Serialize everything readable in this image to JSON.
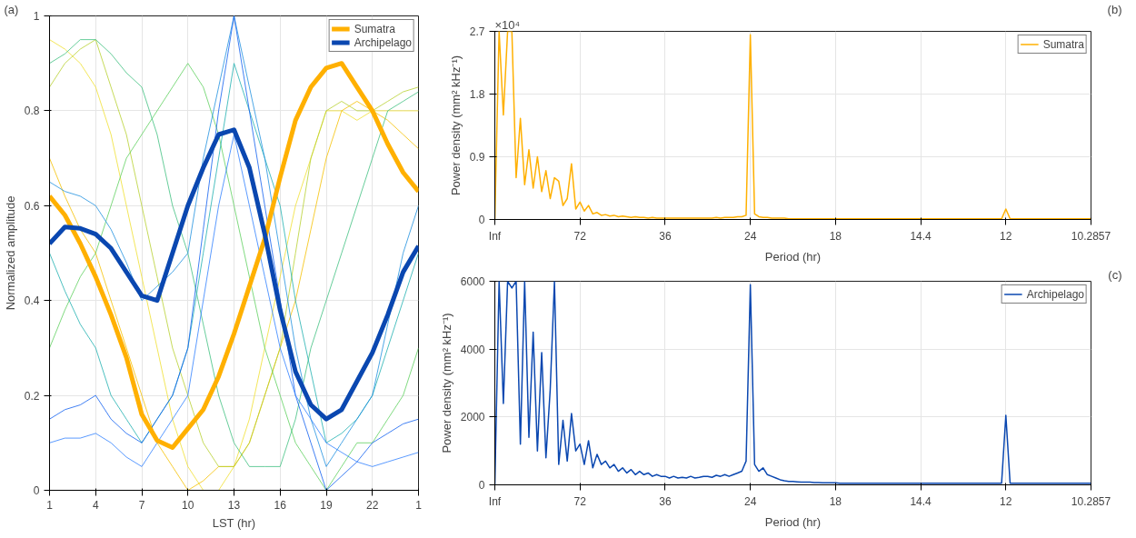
{
  "chart_data": [
    {
      "type": "line",
      "xlabel": "LST (hr)",
      "ylabel": "Normalized amplitude",
      "ylim": [
        0,
        1
      ],
      "categories": [
        "1",
        null,
        null,
        "4",
        null,
        null,
        "7",
        null,
        null,
        "10",
        null,
        null,
        "13",
        null,
        null,
        "16",
        null,
        null,
        "19",
        null,
        null,
        "22",
        null,
        null,
        "1"
      ],
      "yticks": [
        0,
        0.2,
        0.4,
        0.6,
        0.8,
        1
      ],
      "grid": true,
      "legend": "top right",
      "annotations": [
        "(a)"
      ],
      "series": [
        {
          "color": "#f0e030",
          "values": [
            0.95,
            0.93,
            0.9,
            0.85,
            0.75,
            0.6,
            0.45,
            0.3,
            0.15,
            0.05,
            0.0,
            0.0,
            0.05,
            0.15,
            0.3,
            0.45,
            0.6,
            0.7,
            0.8,
            0.8,
            0.78,
            0.8,
            0.8,
            0.8,
            0.8
          ]
        },
        {
          "color": "#f5c000",
          "values": [
            0.7,
            0.62,
            0.55,
            0.5,
            0.4,
            0.3,
            0.2,
            0.1,
            0.05,
            0.0,
            0.02,
            0.05,
            0.05,
            0.1,
            0.2,
            0.3,
            0.4,
            0.55,
            0.7,
            0.8,
            0.82,
            0.8,
            0.78,
            0.75,
            0.72
          ]
        },
        {
          "color": "#b8d030",
          "values": [
            0.85,
            0.9,
            0.93,
            0.95,
            0.85,
            0.75,
            0.6,
            0.45,
            0.3,
            0.2,
            0.1,
            0.05,
            0.05,
            0.1,
            0.2,
            0.3,
            0.5,
            0.7,
            0.8,
            0.82,
            0.8,
            0.8,
            0.82,
            0.84,
            0.85
          ]
        },
        {
          "color": "#60d060",
          "values": [
            0.3,
            0.38,
            0.45,
            0.5,
            0.6,
            0.7,
            0.75,
            0.8,
            0.85,
            0.9,
            0.85,
            0.75,
            0.6,
            0.45,
            0.3,
            0.2,
            0.1,
            0.05,
            0.0,
            0.05,
            0.1,
            0.1,
            0.15,
            0.2,
            0.3
          ]
        },
        {
          "color": "#40c080",
          "values": [
            0.9,
            0.92,
            0.95,
            0.95,
            0.92,
            0.88,
            0.85,
            0.75,
            0.6,
            0.5,
            0.35,
            0.2,
            0.1,
            0.05,
            0.05,
            0.05,
            0.15,
            0.3,
            0.4,
            0.5,
            0.6,
            0.7,
            0.8,
            0.82,
            0.84
          ]
        },
        {
          "color": "#20b0b0",
          "values": [
            0.5,
            0.42,
            0.35,
            0.3,
            0.2,
            0.15,
            0.1,
            0.15,
            0.2,
            0.3,
            0.5,
            0.7,
            0.9,
            0.8,
            0.7,
            0.6,
            0.4,
            0.25,
            0.1,
            0.12,
            0.15,
            0.2,
            0.3,
            0.4,
            0.5
          ]
        },
        {
          "color": "#2090e0",
          "values": [
            0.65,
            0.63,
            0.62,
            0.6,
            0.55,
            0.48,
            0.4,
            0.43,
            0.46,
            0.5,
            0.7,
            0.85,
            1.0,
            0.85,
            0.7,
            0.5,
            0.3,
            0.15,
            0.05,
            0.1,
            0.15,
            0.2,
            0.35,
            0.5,
            0.6
          ]
        },
        {
          "color": "#1060f0",
          "values": [
            0.15,
            0.17,
            0.18,
            0.2,
            0.15,
            0.12,
            0.1,
            0.15,
            0.2,
            0.3,
            0.55,
            0.8,
            1.0,
            0.8,
            0.6,
            0.4,
            0.2,
            0.1,
            0.0,
            0.03,
            0.06,
            0.1,
            0.12,
            0.14,
            0.15
          ]
        },
        {
          "color": "#3080ff",
          "values": [
            0.1,
            0.11,
            0.11,
            0.12,
            0.1,
            0.07,
            0.05,
            0.1,
            0.15,
            0.2,
            0.4,
            0.6,
            0.75,
            0.6,
            0.45,
            0.3,
            0.2,
            0.15,
            0.1,
            0.08,
            0.06,
            0.05,
            0.06,
            0.07,
            0.08
          ]
        },
        {
          "name": "Sumatra",
          "color": "#ffb000",
          "values": [
            0.62,
            0.58,
            0.52,
            0.45,
            0.37,
            0.28,
            0.16,
            0.105,
            0.09,
            0.13,
            0.17,
            0.24,
            0.33,
            0.43,
            0.53,
            0.66,
            0.78,
            0.85,
            0.89,
            0.9,
            0.85,
            0.8,
            0.73,
            0.67,
            0.63
          ]
        },
        {
          "name": "Archipelago",
          "color": "#0a47b0",
          "values": [
            0.52,
            0.555,
            0.552,
            0.54,
            0.51,
            0.46,
            0.41,
            0.4,
            0.5,
            0.6,
            0.68,
            0.75,
            0.76,
            0.68,
            0.54,
            0.38,
            0.25,
            0.18,
            0.15,
            0.17,
            0.23,
            0.29,
            0.37,
            0.46,
            0.515
          ]
        }
      ]
    },
    {
      "type": "line",
      "xlabel": "Period (hr)",
      "ylabel": "Power density (mm² kHz⁻¹)",
      "ylim": [
        0,
        2.7
      ],
      "categories": [
        "Inf",
        null,
        null,
        null,
        null,
        null,
        null,
        null,
        null,
        null,
        null,
        null,
        null,
        null,
        null,
        null,
        null,
        null,
        null,
        null,
        "72",
        null,
        null,
        null,
        null,
        null,
        null,
        null,
        null,
        null,
        null,
        null,
        null,
        null,
        null,
        null,
        null,
        null,
        null,
        null,
        "36",
        null,
        null,
        null,
        null,
        null,
        null,
        null,
        null,
        null,
        null,
        null,
        null,
        null,
        null,
        null,
        null,
        null,
        null,
        null,
        "24",
        null,
        null,
        null,
        null,
        null,
        null,
        null,
        null,
        null,
        null,
        null,
        null,
        null,
        null,
        null,
        null,
        null,
        null,
        null,
        "18",
        null,
        null,
        null,
        null,
        null,
        null,
        null,
        null,
        null,
        null,
        null,
        null,
        null,
        null,
        null,
        null,
        null,
        null,
        null,
        "14.4",
        null,
        null,
        null,
        null,
        null,
        null,
        null,
        null,
        null,
        null,
        null,
        null,
        null,
        null,
        null,
        null,
        null,
        null,
        null,
        "12",
        null,
        null,
        null,
        null,
        null,
        null,
        null,
        null,
        null,
        null,
        null,
        null,
        null,
        null,
        null,
        null,
        null,
        null,
        null,
        "10.2857"
      ],
      "yticks": [
        0,
        0.9,
        1.8,
        2.7
      ],
      "grid": true,
      "legend": "top right",
      "annotations": [
        "×10⁴",
        "(b)"
      ],
      "series": [
        {
          "name": "Sumatra",
          "color": "#ffb000",
          "values": [
            0,
            2.7,
            1.5,
            2.7,
            2.7,
            0.6,
            1.45,
            0.5,
            1.0,
            0.45,
            0.9,
            0.4,
            0.7,
            0.3,
            0.6,
            0.55,
            0.2,
            0.3,
            0.8,
            0.15,
            0.25,
            0.12,
            0.2,
            0.08,
            0.1,
            0.06,
            0.07,
            0.05,
            0.06,
            0.04,
            0.05,
            0.04,
            0.03,
            0.04,
            0.03,
            0.03,
            0.02,
            0.03,
            0.02,
            0.02,
            0.02,
            0.02,
            0.02,
            0.02,
            0.02,
            0.02,
            0.02,
            0.02,
            0.02,
            0.02,
            0.02,
            0.02,
            0.03,
            0.02,
            0.03,
            0.03,
            0.03,
            0.04,
            0.04,
            0.06,
            2.65,
            0.08,
            0.04,
            0.03,
            0.03,
            0.02,
            0.02,
            0.02,
            0.02,
            0.01,
            0.01,
            0.01,
            0.01,
            0.01,
            0.01,
            0.01,
            0.01,
            0.01,
            0.01,
            0.01,
            0.01,
            0.01,
            0.01,
            0.01,
            0.01,
            0.01,
            0.01,
            0.01,
            0.01,
            0.01,
            0.01,
            0.01,
            0.01,
            0.01,
            0.01,
            0.01,
            0.01,
            0.01,
            0.01,
            0.01,
            0.01,
            0.01,
            0.01,
            0.01,
            0.01,
            0.01,
            0.01,
            0.01,
            0.01,
            0.01,
            0.01,
            0.01,
            0.01,
            0.01,
            0.01,
            0.01,
            0.01,
            0.01,
            0.01,
            0.01,
            0.15,
            0.01,
            0.01,
            0.01,
            0.01,
            0.01,
            0.01,
            0.01,
            0.01,
            0.01,
            0.01,
            0.01,
            0.01,
            0.01,
            0.01,
            0.01,
            0.01,
            0.01,
            0.01,
            0.01,
            0.01
          ]
        }
      ]
    },
    {
      "type": "line",
      "xlabel": "Period (hr)",
      "ylabel": "Power density (mm² kHz⁻¹)",
      "ylim": [
        0,
        6000
      ],
      "categories": [
        "Inf",
        null,
        null,
        null,
        null,
        null,
        null,
        null,
        null,
        null,
        null,
        null,
        null,
        null,
        null,
        null,
        null,
        null,
        null,
        null,
        "72",
        null,
        null,
        null,
        null,
        null,
        null,
        null,
        null,
        null,
        null,
        null,
        null,
        null,
        null,
        null,
        null,
        null,
        null,
        null,
        "36",
        null,
        null,
        null,
        null,
        null,
        null,
        null,
        null,
        null,
        null,
        null,
        null,
        null,
        null,
        null,
        null,
        null,
        null,
        null,
        "24",
        null,
        null,
        null,
        null,
        null,
        null,
        null,
        null,
        null,
        null,
        null,
        null,
        null,
        null,
        null,
        null,
        null,
        null,
        null,
        "18",
        null,
        null,
        null,
        null,
        null,
        null,
        null,
        null,
        null,
        null,
        null,
        null,
        null,
        null,
        null,
        null,
        null,
        null,
        null,
        "14.4",
        null,
        null,
        null,
        null,
        null,
        null,
        null,
        null,
        null,
        null,
        null,
        null,
        null,
        null,
        null,
        null,
        null,
        null,
        null,
        "12",
        null,
        null,
        null,
        null,
        null,
        null,
        null,
        null,
        null,
        null,
        null,
        null,
        null,
        null,
        null,
        null,
        null,
        null,
        null,
        "10.2857"
      ],
      "yticks": [
        0,
        2000,
        4000,
        6000
      ],
      "grid": true,
      "legend": "top right",
      "annotations": [
        "(c)"
      ],
      "series": [
        {
          "name": "Archipelago",
          "color": "#0a47b0",
          "values": [
            0,
            6000,
            2400,
            6000,
            5800,
            6000,
            1200,
            6000,
            1400,
            4500,
            1000,
            3900,
            800,
            2800,
            6000,
            600,
            1900,
            700,
            2100,
            1000,
            1200,
            600,
            1300,
            500,
            900,
            600,
            700,
            500,
            600,
            400,
            500,
            350,
            450,
            300,
            400,
            300,
            350,
            250,
            300,
            250,
            250,
            200,
            250,
            200,
            220,
            200,
            250,
            200,
            220,
            250,
            250,
            220,
            280,
            250,
            300,
            250,
            300,
            350,
            400,
            700,
            5900,
            600,
            400,
            500,
            300,
            250,
            200,
            150,
            120,
            100,
            100,
            90,
            80,
            80,
            80,
            70,
            70,
            60,
            60,
            60,
            60,
            50,
            50,
            50,
            50,
            50,
            50,
            50,
            50,
            50,
            50,
            50,
            50,
            50,
            50,
            50,
            50,
            50,
            50,
            50,
            50,
            50,
            50,
            50,
            50,
            50,
            50,
            50,
            50,
            50,
            50,
            50,
            50,
            50,
            50,
            50,
            50,
            50,
            50,
            50,
            2050,
            50,
            50,
            50,
            50,
            50,
            50,
            50,
            50,
            50,
            50,
            50,
            50,
            50,
            50,
            50,
            50,
            50,
            50,
            50,
            50
          ]
        }
      ]
    }
  ]
}
